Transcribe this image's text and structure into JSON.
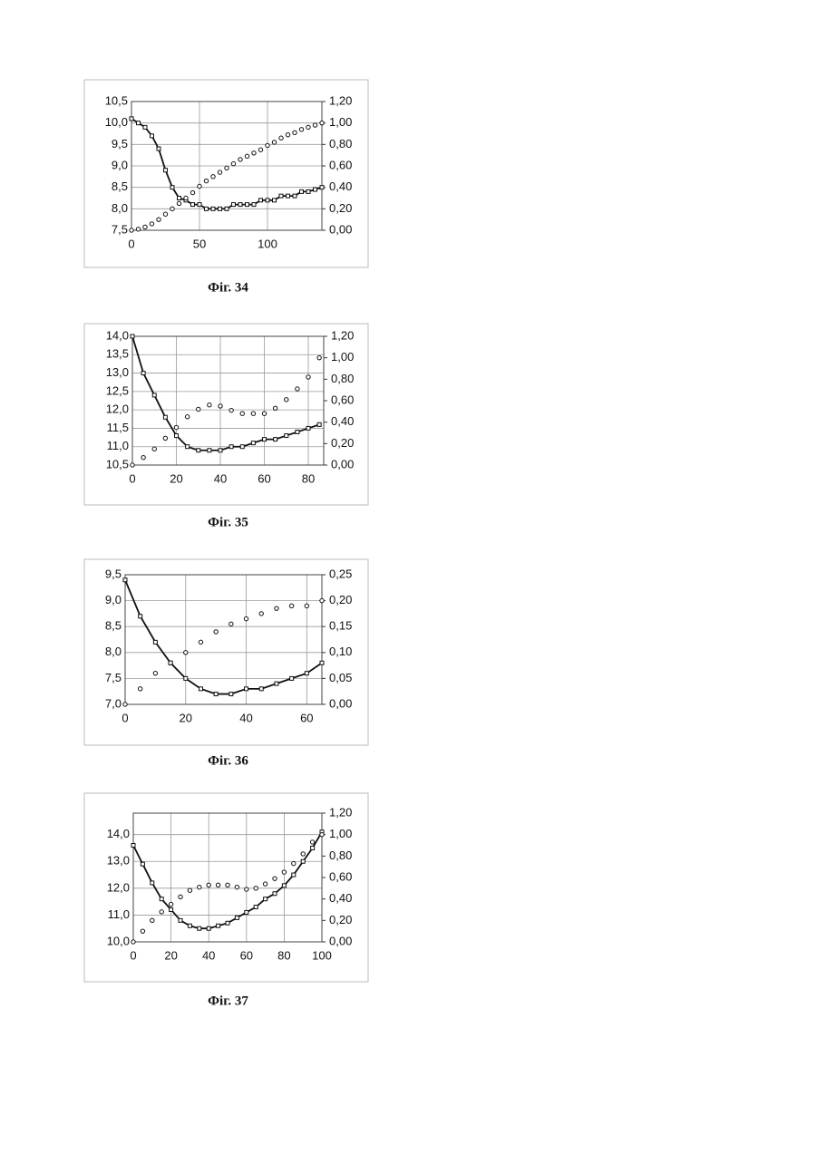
{
  "chart_data": [
    {
      "type": "line",
      "caption": "Фіг. 34",
      "x": [
        0,
        5,
        10,
        15,
        20,
        25,
        30,
        35,
        40,
        45,
        50,
        55,
        60,
        65,
        70,
        75,
        80,
        85,
        90,
        95,
        100,
        105,
        110,
        115,
        120,
        125,
        130,
        135,
        140
      ],
      "xlim": [
        0,
        140
      ],
      "xticks": [
        0,
        50,
        100
      ],
      "ylim": [
        7.5,
        10.5
      ],
      "yticks": [
        {
          "value": 7.5,
          "label": "7,5"
        },
        {
          "value": 8,
          "label": "8,0"
        },
        {
          "value": 8.5,
          "label": "8,5"
        },
        {
          "value": 9,
          "label": "9,0"
        },
        {
          "value": 9.5,
          "label": "9,5"
        },
        {
          "value": 10,
          "label": "10,0"
        },
        {
          "value": 10.5,
          "label": "10,5"
        }
      ],
      "y2lim": [
        0,
        1.2
      ],
      "y2ticks": [
        {
          "value": 0,
          "label": "0,00"
        },
        {
          "value": 0.2,
          "label": "0,20"
        },
        {
          "value": 0.4,
          "label": "0,40"
        },
        {
          "value": 0.6,
          "label": "0,60"
        },
        {
          "value": 0.8,
          "label": "0,80"
        },
        {
          "value": 1,
          "label": "1,00"
        },
        {
          "value": 1.2,
          "label": "1,20"
        }
      ],
      "grid": true,
      "series": [
        {
          "color": "#111",
          "marker": "square",
          "line": true,
          "values": [
            10.1,
            10.0,
            9.9,
            9.7,
            9.4,
            8.9,
            8.5,
            8.25,
            8.2,
            8.1,
            8.1,
            8.0,
            8.0,
            8.0,
            8.0,
            8.1,
            8.1,
            8.1,
            8.1,
            8.2,
            8.2,
            8.2,
            8.3,
            8.3,
            8.3,
            8.4,
            8.4,
            8.45,
            8.5
          ]
        },
        {
          "color": "#111",
          "marker": "circle",
          "line": false,
          "axis": "y2",
          "values": [
            0,
            0.01,
            0.03,
            0.06,
            0.1,
            0.15,
            0.2,
            0.25,
            0.3,
            0.35,
            0.41,
            0.46,
            0.5,
            0.54,
            0.58,
            0.62,
            0.66,
            0.69,
            0.72,
            0.75,
            0.79,
            0.82,
            0.86,
            0.89,
            0.91,
            0.94,
            0.96,
            0.98,
            1.0
          ]
        }
      ]
    },
    {
      "type": "line",
      "caption": "Фіг. 35",
      "x": [
        0,
        5,
        10,
        15,
        20,
        25,
        30,
        35,
        40,
        45,
        50,
        55,
        60,
        65,
        70,
        75,
        80,
        85
      ],
      "xlim": [
        0,
        87
      ],
      "xticks": [
        0,
        20,
        40,
        60,
        80
      ],
      "ylim": [
        10.5,
        14
      ],
      "yticks": [
        {
          "value": 10.5,
          "label": "10,5"
        },
        {
          "value": 11,
          "label": "11,0"
        },
        {
          "value": 11.5,
          "label": "11,5"
        },
        {
          "value": 12,
          "label": "12,0"
        },
        {
          "value": 12.5,
          "label": "12,5"
        },
        {
          "value": 13,
          "label": "13,0"
        },
        {
          "value": 13.5,
          "label": "13,5"
        },
        {
          "value": 14,
          "label": "14,0"
        }
      ],
      "y2lim": [
        0,
        1.2
      ],
      "y2ticks": [
        {
          "value": 0,
          "label": "0,00"
        },
        {
          "value": 0.2,
          "label": "0,20"
        },
        {
          "value": 0.4,
          "label": "0,40"
        },
        {
          "value": 0.6,
          "label": "0,60"
        },
        {
          "value": 0.8,
          "label": "0,80"
        },
        {
          "value": 1,
          "label": "1,00"
        },
        {
          "value": 1.2,
          "label": "1,20"
        }
      ],
      "grid": true,
      "series": [
        {
          "color": "#111",
          "marker": "square",
          "line": true,
          "values": [
            14.0,
            13.0,
            12.4,
            11.8,
            11.3,
            11.0,
            10.9,
            10.9,
            10.9,
            11.0,
            11.0,
            11.1,
            11.2,
            11.2,
            11.3,
            11.4,
            11.5,
            11.6
          ]
        },
        {
          "color": "#111",
          "marker": "circle",
          "line": false,
          "axis": "y2",
          "values": [
            0,
            0.07,
            0.15,
            0.25,
            0.35,
            0.45,
            0.52,
            0.56,
            0.55,
            0.51,
            0.48,
            0.48,
            0.48,
            0.53,
            0.61,
            0.71,
            0.82,
            1.0
          ]
        }
      ]
    },
    {
      "type": "line",
      "caption": "Фіг. 36",
      "x": [
        0,
        5,
        10,
        15,
        20,
        25,
        30,
        35,
        40,
        45,
        50,
        55,
        60,
        65
      ],
      "xlim": [
        0,
        65
      ],
      "xticks": [
        0,
        20,
        40,
        60
      ],
      "ylim": [
        7,
        9.5
      ],
      "yticks": [
        {
          "value": 7,
          "label": "7,0"
        },
        {
          "value": 7.5,
          "label": "7,5"
        },
        {
          "value": 8,
          "label": "8,0"
        },
        {
          "value": 8.5,
          "label": "8,5"
        },
        {
          "value": 9,
          "label": "9,0"
        },
        {
          "value": 9.5,
          "label": "9,5"
        }
      ],
      "y2lim": [
        0,
        0.25
      ],
      "y2ticks": [
        {
          "value": 0,
          "label": "0,00"
        },
        {
          "value": 0.05,
          "label": "0,05"
        },
        {
          "value": 0.1,
          "label": "0,10"
        },
        {
          "value": 0.15,
          "label": "0,15"
        },
        {
          "value": 0.2,
          "label": "0,20"
        },
        {
          "value": 0.25,
          "label": "0,25"
        }
      ],
      "grid": true,
      "series": [
        {
          "color": "#111",
          "marker": "square",
          "line": true,
          "values": [
            9.4,
            8.7,
            8.2,
            7.8,
            7.5,
            7.3,
            7.2,
            7.2,
            7.3,
            7.3,
            7.4,
            7.5,
            7.6,
            7.8
          ]
        },
        {
          "color": "#111",
          "marker": "circle",
          "line": false,
          "axis": "y2",
          "values": [
            0,
            0.03,
            0.06,
            0.08,
            0.1,
            0.12,
            0.14,
            0.155,
            0.165,
            0.175,
            0.185,
            0.19,
            0.19,
            0.2
          ]
        }
      ]
    },
    {
      "type": "line",
      "caption": "Фіг. 37",
      "x": [
        0,
        5,
        10,
        15,
        20,
        25,
        30,
        35,
        40,
        45,
        50,
        55,
        60,
        65,
        70,
        75,
        80,
        85,
        90,
        95,
        100
      ],
      "xlim": [
        0,
        100
      ],
      "xticks": [
        0,
        20,
        40,
        60,
        80,
        100
      ],
      "ylim": [
        10,
        14.8
      ],
      "yticks": [
        {
          "value": 10,
          "label": "10,0"
        },
        {
          "value": 11,
          "label": "11,0"
        },
        {
          "value": 12,
          "label": "12,0"
        },
        {
          "value": 13,
          "label": "13,0"
        },
        {
          "value": 14,
          "label": "14,0"
        }
      ],
      "y2lim": [
        0,
        1.2
      ],
      "y2ticks": [
        {
          "value": 0,
          "label": "0,00"
        },
        {
          "value": 0.2,
          "label": "0,20"
        },
        {
          "value": 0.4,
          "label": "0,40"
        },
        {
          "value": 0.6,
          "label": "0,60"
        },
        {
          "value": 0.8,
          "label": "0,80"
        },
        {
          "value": 1,
          "label": "1,00"
        },
        {
          "value": 1.2,
          "label": "1,20"
        }
      ],
      "grid": true,
      "series": [
        {
          "color": "#111",
          "marker": "square",
          "line": true,
          "values": [
            13.6,
            12.9,
            12.2,
            11.6,
            11.2,
            10.8,
            10.6,
            10.5,
            10.5,
            10.6,
            10.7,
            10.9,
            11.1,
            11.3,
            11.6,
            11.8,
            12.1,
            12.5,
            13.0,
            13.5,
            14.1
          ]
        },
        {
          "color": "#111",
          "marker": "circle",
          "line": false,
          "axis": "y2",
          "values": [
            0,
            0.1,
            0.2,
            0.28,
            0.35,
            0.42,
            0.48,
            0.51,
            0.53,
            0.53,
            0.53,
            0.51,
            0.49,
            0.5,
            0.54,
            0.59,
            0.65,
            0.73,
            0.82,
            0.93,
            1.0
          ]
        }
      ]
    }
  ]
}
